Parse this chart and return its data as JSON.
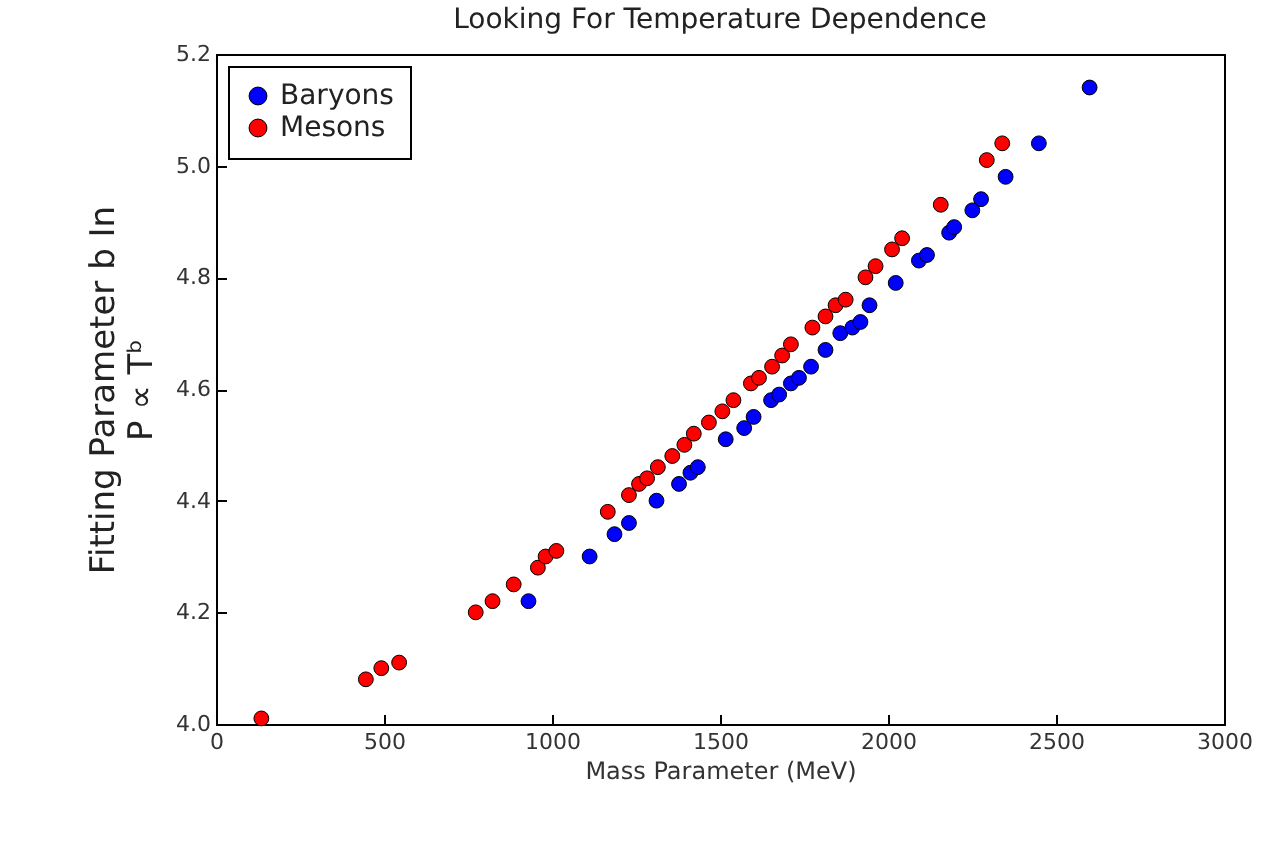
{
  "chart_data": {
    "type": "scatter",
    "title": "Looking For Temperature Dependence",
    "xlabel": "Mass Parameter (MeV)",
    "ylabel": "Fitting Parameter b In\nP ∝ Tᵇ",
    "xlim": [
      0,
      3000
    ],
    "xticks": [
      0,
      500,
      1000,
      1500,
      2000,
      2500,
      3000
    ],
    "ylim": [
      4.0,
      5.2
    ],
    "yticks": [
      {
        "value": 4.0,
        "label": "4.0"
      },
      {
        "value": 4.2,
        "label": "4.2"
      },
      {
        "value": 4.4,
        "label": "4.4"
      },
      {
        "value": 4.6,
        "label": "4.6"
      },
      {
        "value": 4.8,
        "label": "4.8"
      },
      {
        "value": 5.0,
        "label": "5.0"
      },
      {
        "value": 5.2,
        "label": "5.2"
      }
    ],
    "grid": false,
    "legend": "top left",
    "marker": "circle",
    "series": [
      {
        "name": "Baryons",
        "color": "#0000ff",
        "x": [
          930,
          1112,
          1186,
          1229,
          1311,
          1378,
          1412,
          1434,
          1517,
          1572,
          1600,
          1652,
          1676,
          1711,
          1735,
          1771,
          1814,
          1858,
          1894,
          1918,
          1945,
          2023,
          2092,
          2116,
          2182,
          2197,
          2251,
          2277,
          2350,
          2449,
          2600
        ],
        "values": [
          4.22,
          4.3,
          4.34,
          4.36,
          4.4,
          4.43,
          4.45,
          4.46,
          4.51,
          4.53,
          4.55,
          4.58,
          4.59,
          4.61,
          4.62,
          4.64,
          4.67,
          4.7,
          4.71,
          4.72,
          4.75,
          4.79,
          4.83,
          4.84,
          4.88,
          4.89,
          4.92,
          4.94,
          4.98,
          5.04,
          5.14
        ]
      },
      {
        "name": "Mesons",
        "color": "#ff0000",
        "x": [
          135,
          446,
          492,
          545,
          773,
          823,
          886,
          958,
          981,
          1013,
          1166,
          1229,
          1259,
          1283,
          1315,
          1358,
          1394,
          1422,
          1467,
          1507,
          1540,
          1592,
          1616,
          1655,
          1685,
          1711,
          1775,
          1814,
          1844,
          1874,
          1933,
          1963,
          2012,
          2042,
          2157,
          2294,
          2340
        ],
        "values": [
          4.01,
          4.08,
          4.1,
          4.11,
          4.2,
          4.22,
          4.25,
          4.28,
          4.3,
          4.31,
          4.38,
          4.41,
          4.43,
          4.44,
          4.46,
          4.48,
          4.5,
          4.52,
          4.54,
          4.56,
          4.58,
          4.61,
          4.62,
          4.64,
          4.66,
          4.68,
          4.71,
          4.73,
          4.75,
          4.76,
          4.8,
          4.82,
          4.85,
          4.87,
          4.93,
          5.01,
          5.04
        ]
      }
    ]
  }
}
